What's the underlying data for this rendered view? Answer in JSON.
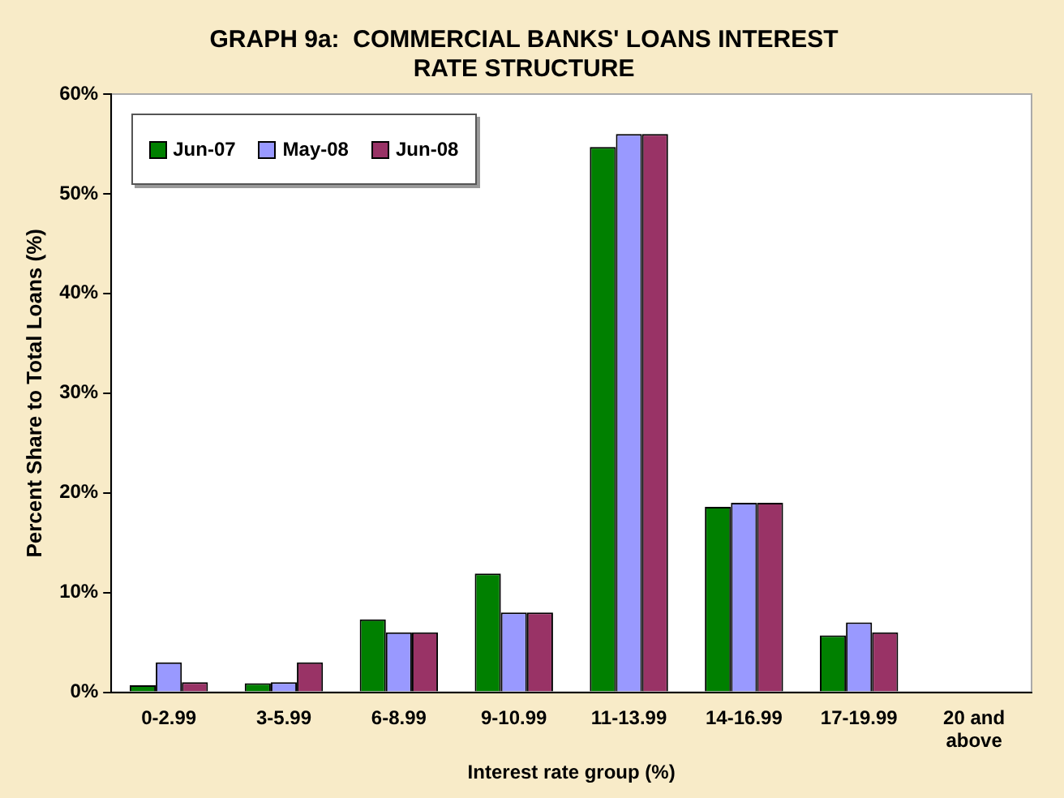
{
  "chart_data": {
    "type": "bar",
    "title": "GRAPH 9a:  COMMERCIAL BANKS' LOANS INTEREST RATE STRUCTURE",
    "xlabel": "Interest rate group (%)",
    "ylabel": "Percent Share to Total Loans (%)",
    "categories": [
      "0-2.99",
      "3-5.99",
      "6-8.99",
      "9-10.99",
      "11-13.99",
      "14-16.99",
      "17-19.99",
      "20 and above"
    ],
    "series": [
      {
        "name": "Jun-07",
        "color": "#008000",
        "values": [
          0.7,
          0.9,
          7.3,
          11.9,
          54.7,
          18.6,
          5.7,
          0
        ]
      },
      {
        "name": "May-08",
        "color": "#9999ff",
        "values": [
          3,
          1,
          6,
          8,
          56,
          19,
          7,
          0
        ]
      },
      {
        "name": "Jun-08",
        "color": "#993366",
        "values": [
          1,
          3,
          6,
          8,
          56,
          19,
          6,
          0
        ]
      }
    ],
    "ylim": [
      0,
      60
    ],
    "yticks": [
      {
        "value": 0,
        "label": "0%"
      },
      {
        "value": 10,
        "label": "10%"
      },
      {
        "value": 20,
        "label": "20%"
      },
      {
        "value": 30,
        "label": "30%"
      },
      {
        "value": 40,
        "label": "40%"
      },
      {
        "value": 50,
        "label": "50%"
      },
      {
        "value": 60,
        "label": "60%"
      }
    ],
    "grid": false,
    "legend": "top left"
  }
}
